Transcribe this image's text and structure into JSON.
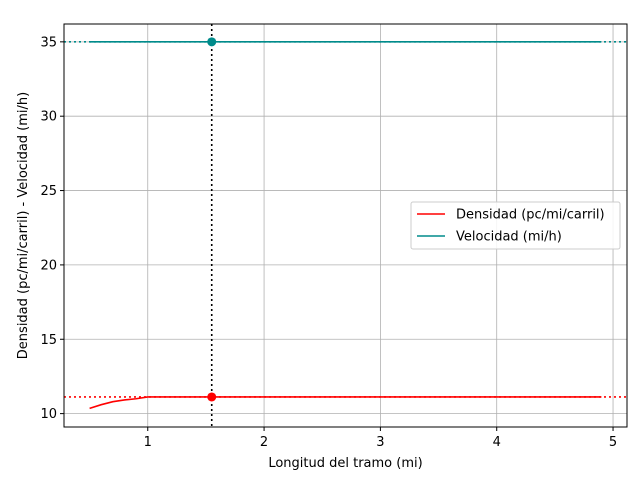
{
  "chart_data": {
    "type": "line",
    "xlabel": "Longitud del tramo (mi)",
    "ylabel": "Densidad (pc/mi/carril) - Velocidad (mi/h)",
    "xlim": [
      0.28,
      5.12
    ],
    "ylim": [
      9.1,
      36.2
    ],
    "x_ticks": [
      1,
      2,
      3,
      4,
      5
    ],
    "y_ticks": [
      10,
      15,
      20,
      25,
      30,
      35
    ],
    "grid": true,
    "legend_position": "center-right",
    "series": [
      {
        "name": "Densidad (pc/mi/carril)",
        "color": "#ff0000",
        "x": [
          0.5,
          0.6,
          0.7,
          0.8,
          0.9,
          1.0,
          1.2,
          1.5,
          2.0,
          3.0,
          4.0,
          4.9
        ],
        "y": [
          10.35,
          10.6,
          10.8,
          10.92,
          11.0,
          11.12,
          11.12,
          11.12,
          11.12,
          11.12,
          11.12,
          11.12
        ]
      },
      {
        "name": "Velocidad (mi/h)",
        "color": "#008b8b",
        "x": [
          0.5,
          4.9
        ],
        "y": [
          35.0,
          35.0
        ]
      }
    ],
    "reference_lines": {
      "vertical_x": 1.55,
      "vertical_color": "#000000",
      "density_y": 11.12,
      "density_color": "#ff0000",
      "velocity_y": 35.0,
      "velocity_color": "#008b8b"
    },
    "markers": [
      {
        "x": 1.55,
        "y": 11.12,
        "color": "#ff0000"
      },
      {
        "x": 1.55,
        "y": 35.0,
        "color": "#008b8b"
      }
    ]
  }
}
